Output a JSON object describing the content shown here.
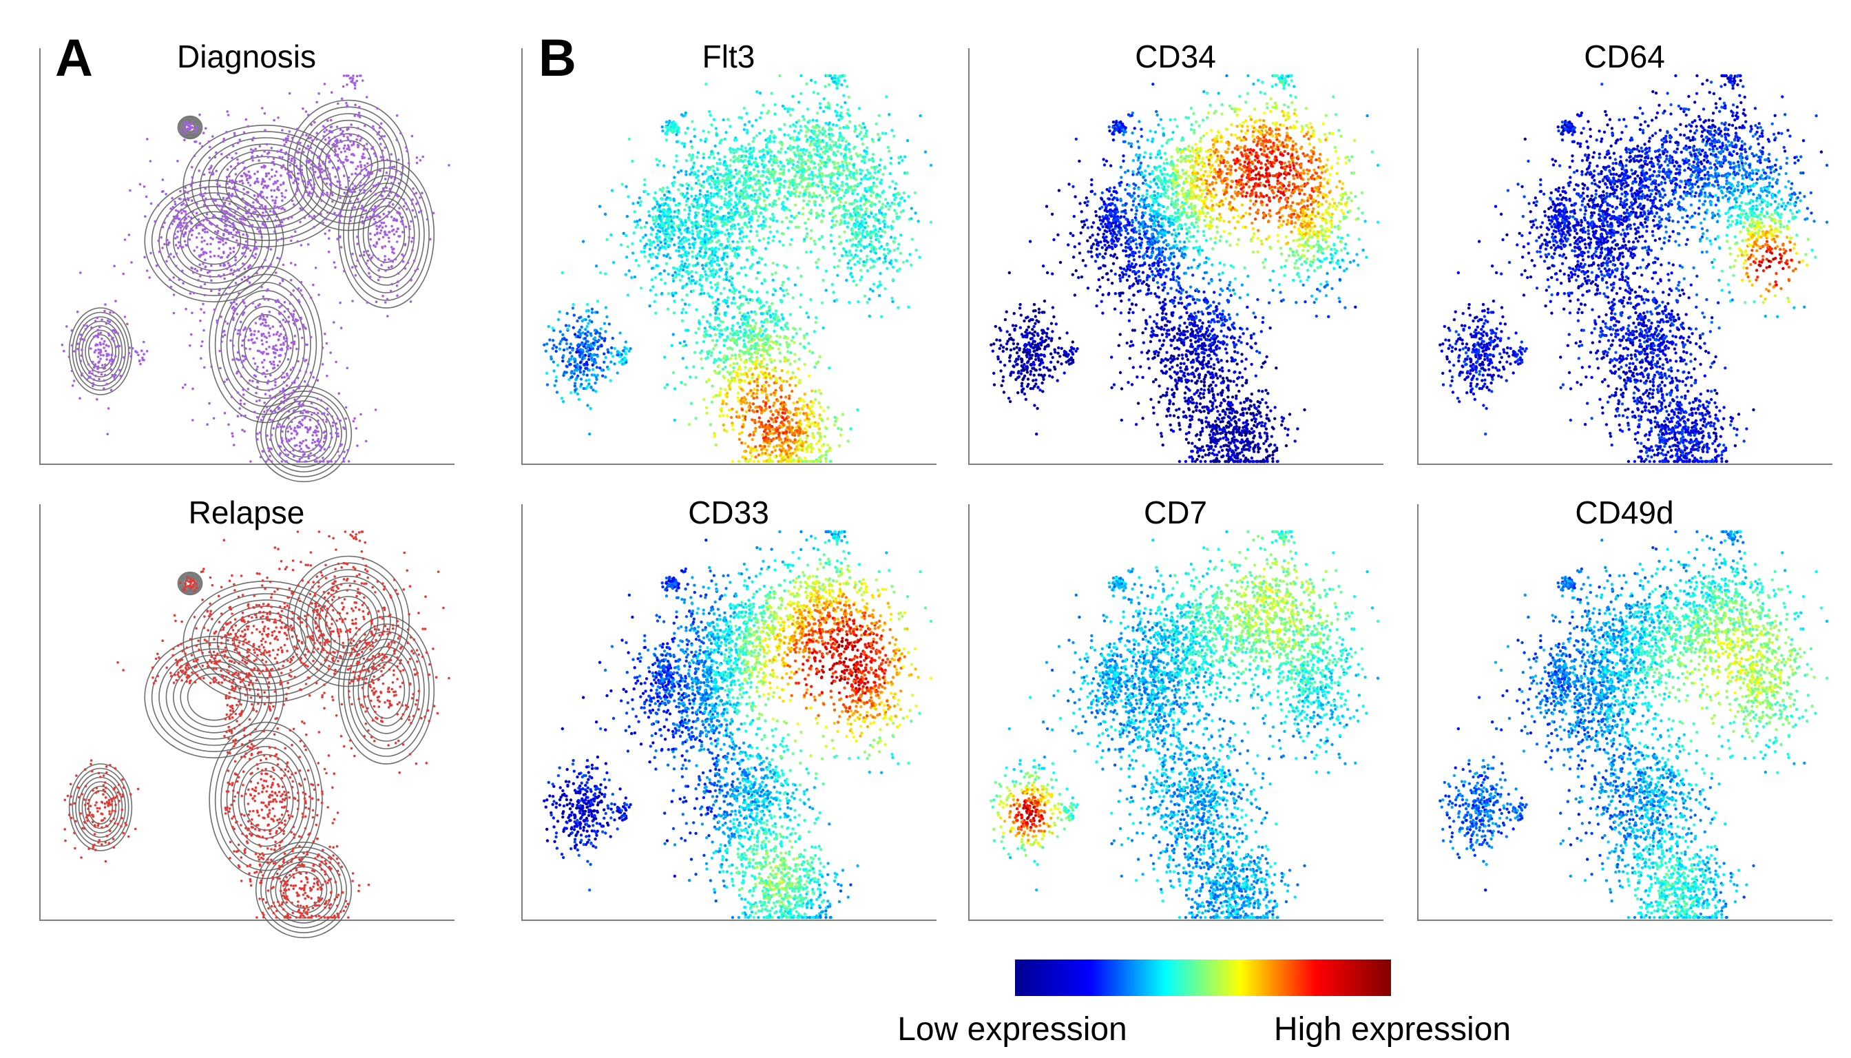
{
  "panel_letters": [
    "A",
    "B"
  ],
  "chart_data": [
    {
      "type": "scatter",
      "title": "Diagnosis",
      "panel": "A",
      "overlay": "density-contours",
      "color": "#a45ee5",
      "xlabel": "",
      "ylabel": ""
    },
    {
      "type": "scatter",
      "title": "Relapse",
      "panel": "A",
      "overlay": "density-contours",
      "color": "#e53935",
      "xlabel": "",
      "ylabel": ""
    },
    {
      "type": "scatter",
      "title": "Flt3",
      "panel": "B",
      "colormap": "jet",
      "xlabel": "",
      "ylabel": ""
    },
    {
      "type": "scatter",
      "title": "CD34",
      "panel": "B",
      "colormap": "jet",
      "xlabel": "",
      "ylabel": ""
    },
    {
      "type": "scatter",
      "title": "CD64",
      "panel": "B",
      "colormap": "jet",
      "xlabel": "",
      "ylabel": ""
    },
    {
      "type": "scatter",
      "title": "CD33",
      "panel": "B",
      "colormap": "jet",
      "xlabel": "",
      "ylabel": ""
    },
    {
      "type": "scatter",
      "title": "CD7",
      "panel": "B",
      "colormap": "jet",
      "xlabel": "",
      "ylabel": ""
    },
    {
      "type": "scatter",
      "title": "CD49d",
      "panel": "B",
      "colormap": "jet",
      "xlabel": "",
      "ylabel": ""
    }
  ],
  "colorbar": {
    "low_label": "Low expression",
    "high_label": "High expression",
    "colors": [
      "#00008f",
      "#0000ff",
      "#00ffff",
      "#ffff00",
      "#ff0000",
      "#800000"
    ]
  }
}
